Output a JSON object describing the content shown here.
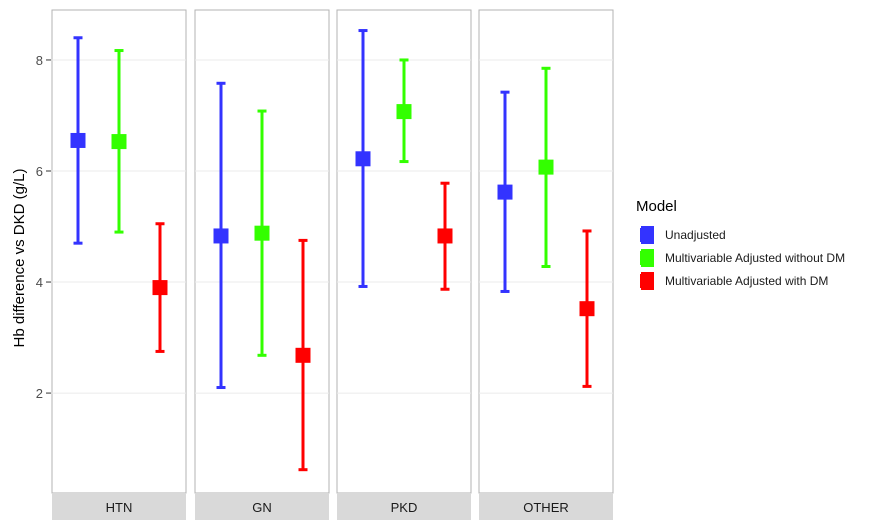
{
  "chart_data": {
    "type": "errorbar",
    "ylabel": "Hb difference vs DKD (g/L)",
    "yticks": [
      2,
      4,
      6,
      8
    ],
    "ylim": [
      0.2,
      8.9
    ],
    "grid": true,
    "legend": {
      "title": "Model",
      "position": "right"
    },
    "facets": [
      "HTN",
      "GN",
      "PKD",
      "OTHER"
    ],
    "series": [
      {
        "name": "Unadjusted",
        "color": "#3333ff",
        "estimate": [
          6.55,
          4.83,
          6.22,
          5.62
        ],
        "lower": [
          4.7,
          2.1,
          3.92,
          3.83
        ],
        "upper": [
          8.4,
          7.58,
          8.53,
          7.42
        ]
      },
      {
        "name": "Multivariable Adjusted without DM",
        "color": "#33ff00",
        "estimate": [
          6.53,
          4.88,
          7.07,
          6.07
        ],
        "lower": [
          4.9,
          2.68,
          6.17,
          4.28
        ],
        "upper": [
          8.17,
          7.08,
          8.0,
          7.85
        ]
      },
      {
        "name": "Multivariable Adjusted with DM",
        "color": "#ff0000",
        "estimate": [
          3.9,
          2.68,
          4.83,
          3.52
        ],
        "lower": [
          2.75,
          0.62,
          3.87,
          2.12
        ],
        "upper": [
          5.05,
          4.75,
          5.78,
          4.92
        ]
      }
    ]
  }
}
